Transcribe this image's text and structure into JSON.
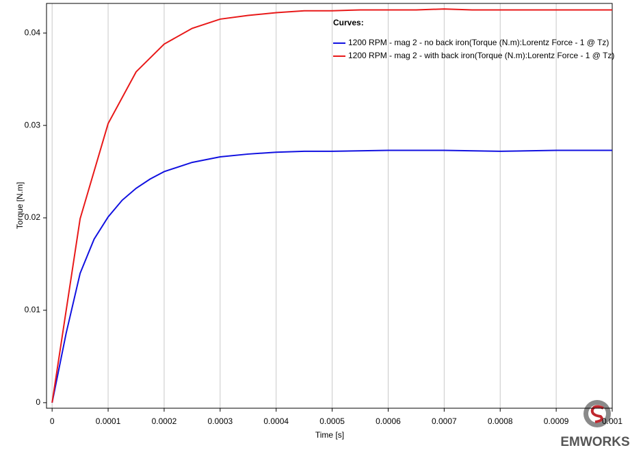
{
  "chart_data": {
    "type": "line",
    "xlabel": "Time [s]",
    "ylabel": "Torque [N.m]",
    "legend_title": "Curves:",
    "legend": "upper right",
    "grid": true,
    "xlim": [
      -1e-05,
      0.001
    ],
    "ylim": [
      -0.0006,
      0.0432
    ],
    "xticks": [
      0,
      0.0001,
      0.0002,
      0.0003,
      0.0004,
      0.0005,
      0.0006,
      0.0007,
      0.0008,
      0.0009,
      0.001
    ],
    "yticks": [
      0,
      0.01,
      0.02,
      0.03,
      0.04
    ],
    "series": [
      {
        "name": "1200 RPM - mag 2 - no back iron(Torque (N.m):Lorentz Force - 1 @ Tz)",
        "color": "#1010e0",
        "x": [
          0,
          2.5e-05,
          5e-05,
          7.5e-05,
          0.0001,
          0.000125,
          0.00015,
          0.000175,
          0.0002,
          0.00025,
          0.0003,
          0.00035,
          0.0004,
          0.00045,
          0.0005,
          0.0006,
          0.0007,
          0.0008,
          0.0009,
          0.001
        ],
        "values": [
          0,
          0.0075,
          0.014,
          0.0177,
          0.0201,
          0.0219,
          0.0232,
          0.0242,
          0.025,
          0.026,
          0.0266,
          0.0269,
          0.0271,
          0.0272,
          0.0272,
          0.0273,
          0.0273,
          0.0272,
          0.0273,
          0.0273
        ]
      },
      {
        "name": "1200 RPM - mag 2 - with back iron(Torque (N.m):Lorentz Force - 1 @ Tz)",
        "color": "#e81818",
        "x": [
          0,
          5e-05,
          0.0001,
          0.00015,
          0.0002,
          0.00025,
          0.0003,
          0.00035,
          0.0004,
          0.00045,
          0.0005,
          0.00055,
          0.0006,
          0.00065,
          0.0007,
          0.00075,
          0.0008,
          0.00085,
          0.0009,
          0.00095,
          0.001
        ],
        "values": [
          0,
          0.0199,
          0.0302,
          0.0358,
          0.0388,
          0.0405,
          0.0415,
          0.0419,
          0.0422,
          0.0424,
          0.0424,
          0.0425,
          0.0425,
          0.0425,
          0.0426,
          0.0425,
          0.0425,
          0.0425,
          0.0425,
          0.0425,
          0.0425
        ]
      }
    ]
  },
  "watermark": "EMWORKS"
}
